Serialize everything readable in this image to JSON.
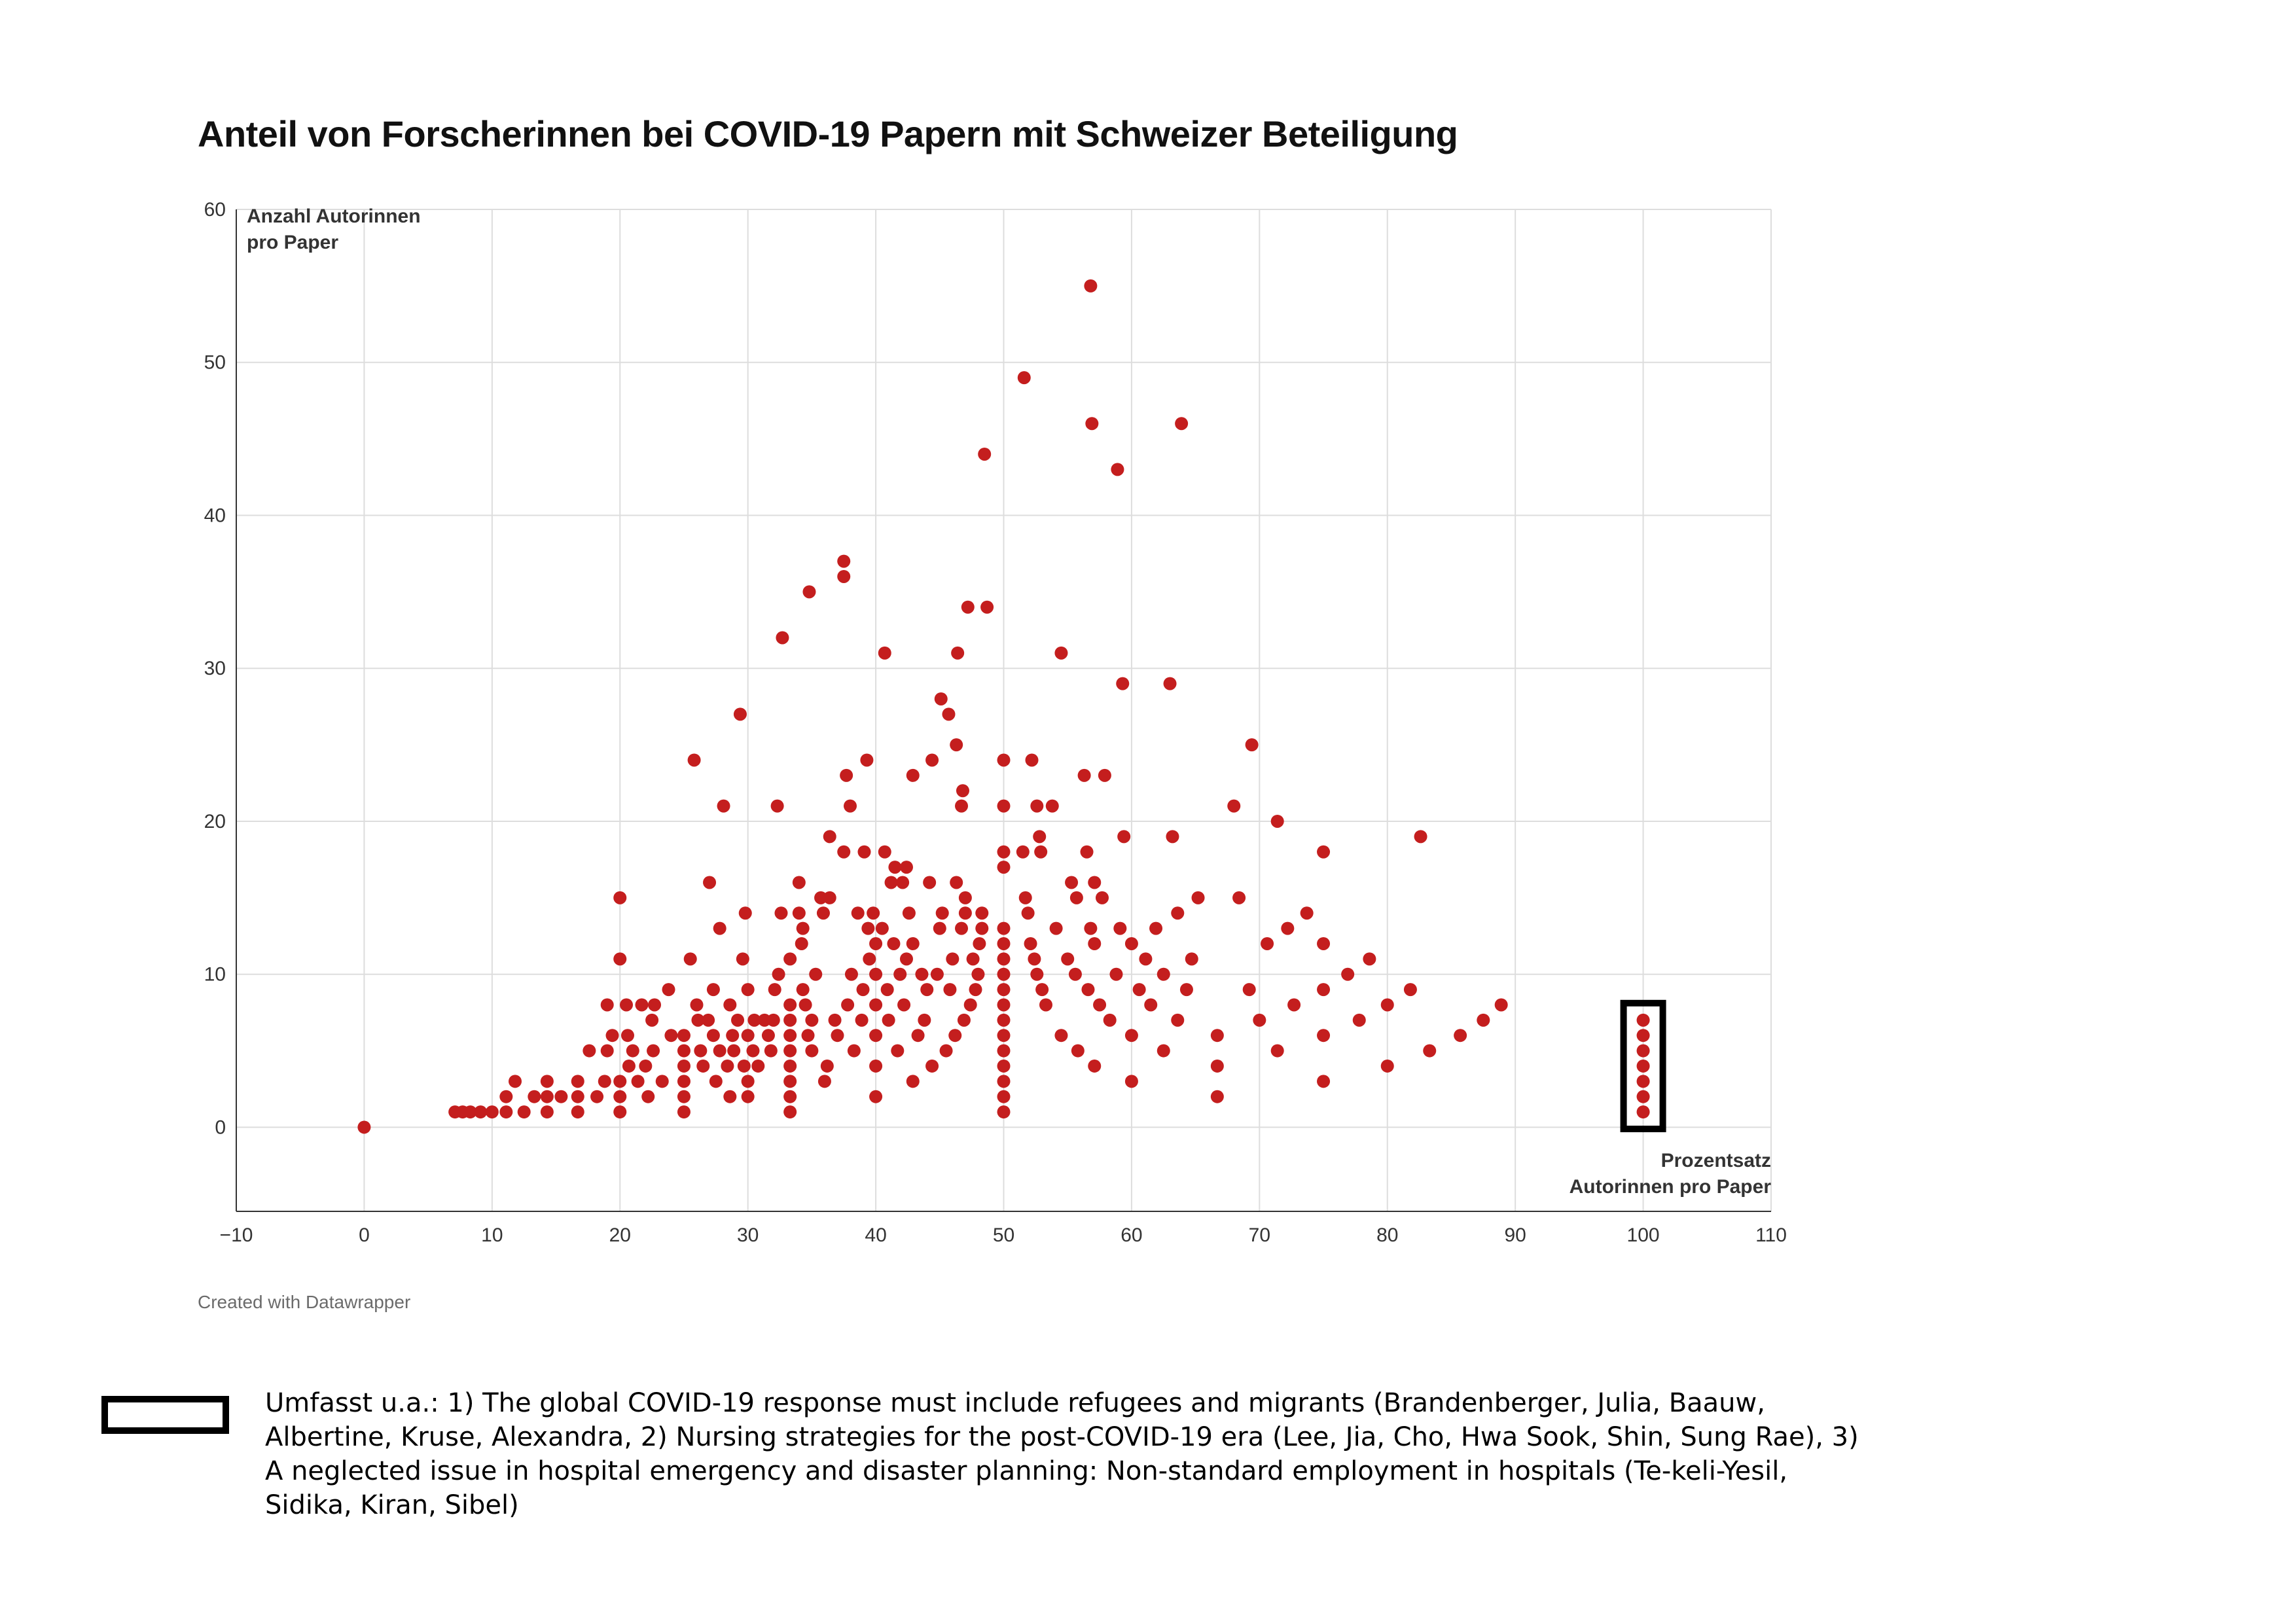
{
  "title": "Anteil von Forscherinnen bei COVID-19 Papern mit Schweizer Beteiligung",
  "credit": "Created with Datawrapper",
  "note": "Umfasst u.a.: 1) The global COVID-19 response must include refugees and migrants (Brandenberger, Julia, Baauw, Albertine, Kruse, Alexandra, 2) Nursing strategies for the post-COVID-19 era (Lee, Jia, Cho, Hwa Sook, Shin, Sung Rae), 3) A neglected issue in hospital emergency and disaster planning: Non-standard employment in hospitals (Te-keli-Yesil, Sidika, Kiran, Sibel)",
  "colors": {
    "dot": "#c41e1e",
    "grid": "#dddddd",
    "highlight": "#000000"
  },
  "chart_data": {
    "type": "scatter",
    "title": "Anteil von Forscherinnen bei COVID-19 Papern mit Schweizer Beteiligung",
    "ylabel_lines": [
      "Anzahl Autorinnen",
      "pro Paper"
    ],
    "xlabel_lines": [
      "Prozentsatz",
      "Autorinnen pro Paper"
    ],
    "xlim": [
      -10,
      110
    ],
    "ylim": [
      -5.5,
      60
    ],
    "x_ticks": [
      -10,
      0,
      10,
      20,
      30,
      40,
      50,
      60,
      70,
      80,
      90,
      100,
      110
    ],
    "x_tick_labels": [
      "−10",
      "0",
      "10",
      "20",
      "30",
      "40",
      "50",
      "60",
      "70",
      "80",
      "90",
      "100",
      "110"
    ],
    "y_ticks": [
      0,
      10,
      20,
      30,
      40,
      50,
      60
    ],
    "y_tick_labels": [
      "0",
      "10",
      "20",
      "30",
      "40",
      "50",
      "60"
    ],
    "grid": true,
    "highlight": {
      "x": 100,
      "y_range": [
        1,
        7
      ],
      "shape": "rectangle"
    },
    "points": [
      [
        0,
        0
      ],
      [
        7.1,
        1
      ],
      [
        7.7,
        1
      ],
      [
        8.3,
        1
      ],
      [
        9.1,
        1
      ],
      [
        10,
        1
      ],
      [
        11.1,
        1
      ],
      [
        11.1,
        2
      ],
      [
        11.8,
        3
      ],
      [
        12.5,
        1
      ],
      [
        13.3,
        2
      ],
      [
        14.3,
        1
      ],
      [
        14.3,
        2
      ],
      [
        14.3,
        3
      ],
      [
        15.4,
        2
      ],
      [
        16.7,
        1
      ],
      [
        16.7,
        2
      ],
      [
        16.7,
        3
      ],
      [
        17.6,
        5
      ],
      [
        18.2,
        2
      ],
      [
        18.8,
        3
      ],
      [
        19,
        5
      ],
      [
        19,
        8
      ],
      [
        19.4,
        6
      ],
      [
        20,
        1
      ],
      [
        20,
        2
      ],
      [
        20,
        3
      ],
      [
        20,
        11
      ],
      [
        20,
        15
      ],
      [
        20.5,
        8
      ],
      [
        20.6,
        6
      ],
      [
        20.7,
        4
      ],
      [
        21,
        5
      ],
      [
        21.4,
        3
      ],
      [
        21.7,
        8
      ],
      [
        22,
        4
      ],
      [
        22.2,
        2
      ],
      [
        22.5,
        7
      ],
      [
        22.6,
        5
      ],
      [
        22.7,
        8
      ],
      [
        23.3,
        3
      ],
      [
        23.8,
        9
      ],
      [
        24,
        6
      ],
      [
        25,
        1
      ],
      [
        25,
        2
      ],
      [
        25,
        3
      ],
      [
        25,
        4
      ],
      [
        25,
        5
      ],
      [
        25,
        6
      ],
      [
        25.5,
        11
      ],
      [
        25.8,
        24
      ],
      [
        26,
        8
      ],
      [
        26.1,
        7
      ],
      [
        26.3,
        5
      ],
      [
        26.5,
        4
      ],
      [
        26.9,
        7
      ],
      [
        27,
        16
      ],
      [
        27.3,
        6
      ],
      [
        27.3,
        9
      ],
      [
        27.5,
        3
      ],
      [
        27.8,
        5
      ],
      [
        27.8,
        13
      ],
      [
        28.1,
        21
      ],
      [
        28.4,
        4
      ],
      [
        28.6,
        2
      ],
      [
        28.6,
        8
      ],
      [
        28.8,
        6
      ],
      [
        28.9,
        5
      ],
      [
        29.2,
        7
      ],
      [
        29.4,
        27
      ],
      [
        29.6,
        11
      ],
      [
        29.7,
        4
      ],
      [
        29.8,
        14
      ],
      [
        30,
        3
      ],
      [
        30,
        6
      ],
      [
        30,
        9
      ],
      [
        30,
        2
      ],
      [
        30.4,
        5
      ],
      [
        30.5,
        7
      ],
      [
        30.8,
        4
      ],
      [
        31.3,
        7
      ],
      [
        31.6,
        6
      ],
      [
        31.8,
        5
      ],
      [
        32,
        7
      ],
      [
        32.1,
        9
      ],
      [
        32.3,
        21
      ],
      [
        32.4,
        10
      ],
      [
        32.6,
        14
      ],
      [
        32.7,
        32
      ],
      [
        33.3,
        1
      ],
      [
        33.3,
        2
      ],
      [
        33.3,
        3
      ],
      [
        33.3,
        4
      ],
      [
        33.3,
        5
      ],
      [
        33.3,
        6
      ],
      [
        33.3,
        7
      ],
      [
        33.3,
        8
      ],
      [
        33.3,
        11
      ],
      [
        34,
        14
      ],
      [
        34,
        16
      ],
      [
        34.2,
        12
      ],
      [
        34.3,
        13
      ],
      [
        34.3,
        9
      ],
      [
        34.5,
        8
      ],
      [
        34.7,
        6
      ],
      [
        34.8,
        35
      ],
      [
        35,
        5
      ],
      [
        35,
        7
      ],
      [
        35.3,
        10
      ],
      [
        35.7,
        15
      ],
      [
        35.9,
        14
      ],
      [
        36,
        3
      ],
      [
        36.2,
        4
      ],
      [
        36.4,
        19
      ],
      [
        36.4,
        15
      ],
      [
        36.8,
        7
      ],
      [
        37,
        6
      ],
      [
        37.5,
        18
      ],
      [
        37.5,
        36
      ],
      [
        37.5,
        37
      ],
      [
        37.7,
        23
      ],
      [
        37.8,
        8
      ],
      [
        38,
        21
      ],
      [
        38.1,
        10
      ],
      [
        38.3,
        5
      ],
      [
        38.6,
        14
      ],
      [
        38.9,
        7
      ],
      [
        39,
        9
      ],
      [
        39.1,
        18
      ],
      [
        39.3,
        24
      ],
      [
        39.4,
        13
      ],
      [
        39.5,
        11
      ],
      [
        39.8,
        14
      ],
      [
        40,
        2
      ],
      [
        40,
        4
      ],
      [
        40,
        6
      ],
      [
        40,
        8
      ],
      [
        40,
        10
      ],
      [
        40,
        12
      ],
      [
        40.5,
        13
      ],
      [
        40.7,
        31
      ],
      [
        40.7,
        18
      ],
      [
        40.9,
        9
      ],
      [
        41,
        7
      ],
      [
        41.2,
        16
      ],
      [
        41.4,
        12
      ],
      [
        41.5,
        17
      ],
      [
        41.7,
        5
      ],
      [
        41.9,
        10
      ],
      [
        42.1,
        16
      ],
      [
        42.2,
        8
      ],
      [
        42.4,
        11
      ],
      [
        42.4,
        17
      ],
      [
        42.6,
        14
      ],
      [
        42.9,
        12
      ],
      [
        42.9,
        23
      ],
      [
        42.9,
        3
      ],
      [
        43.3,
        6
      ],
      [
        43.6,
        10
      ],
      [
        43.8,
        7
      ],
      [
        44,
        9
      ],
      [
        44.2,
        16
      ],
      [
        44.4,
        24
      ],
      [
        44.4,
        4
      ],
      [
        44.8,
        10
      ],
      [
        45,
        13
      ],
      [
        45.1,
        28
      ],
      [
        45.2,
        14
      ],
      [
        45.5,
        5
      ],
      [
        45.7,
        27
      ],
      [
        45.8,
        9
      ],
      [
        46,
        11
      ],
      [
        46.2,
        6
      ],
      [
        46.3,
        16
      ],
      [
        46.3,
        25
      ],
      [
        46.4,
        31
      ],
      [
        46.7,
        13
      ],
      [
        46.7,
        21
      ],
      [
        46.8,
        22
      ],
      [
        46.9,
        7
      ],
      [
        47,
        14
      ],
      [
        47,
        15
      ],
      [
        47.2,
        34
      ],
      [
        47.4,
        8
      ],
      [
        47.6,
        11
      ],
      [
        47.8,
        9
      ],
      [
        48,
        10
      ],
      [
        48.1,
        12
      ],
      [
        48.3,
        13
      ],
      [
        48.3,
        14
      ],
      [
        48.5,
        44
      ],
      [
        48.7,
        34
      ],
      [
        50,
        1
      ],
      [
        50,
        2
      ],
      [
        50,
        3
      ],
      [
        50,
        4
      ],
      [
        50,
        5
      ],
      [
        50,
        6
      ],
      [
        50,
        7
      ],
      [
        50,
        8
      ],
      [
        50,
        9
      ],
      [
        50,
        10
      ],
      [
        50,
        11
      ],
      [
        50,
        12
      ],
      [
        50,
        13
      ],
      [
        50,
        17
      ],
      [
        50,
        18
      ],
      [
        50,
        21
      ],
      [
        50,
        24
      ],
      [
        51.5,
        18
      ],
      [
        51.6,
        49
      ],
      [
        51.7,
        15
      ],
      [
        51.9,
        14
      ],
      [
        52.1,
        12
      ],
      [
        52.2,
        24
      ],
      [
        52.4,
        11
      ],
      [
        52.6,
        21
      ],
      [
        52.6,
        10
      ],
      [
        52.8,
        19
      ],
      [
        52.9,
        18
      ],
      [
        53,
        9
      ],
      [
        53.3,
        8
      ],
      [
        53.8,
        21
      ],
      [
        54.1,
        13
      ],
      [
        54.5,
        31
      ],
      [
        54.5,
        6
      ],
      [
        55,
        11
      ],
      [
        55.3,
        16
      ],
      [
        55.6,
        10
      ],
      [
        55.7,
        15
      ],
      [
        55.8,
        5
      ],
      [
        56.3,
        23
      ],
      [
        56.5,
        18
      ],
      [
        56.6,
        9
      ],
      [
        56.8,
        55
      ],
      [
        56.8,
        13
      ],
      [
        56.9,
        46
      ],
      [
        57.1,
        4
      ],
      [
        57.1,
        12
      ],
      [
        57.1,
        16
      ],
      [
        57.5,
        8
      ],
      [
        57.7,
        15
      ],
      [
        57.9,
        23
      ],
      [
        58.3,
        7
      ],
      [
        58.8,
        10
      ],
      [
        58.9,
        43
      ],
      [
        59.1,
        13
      ],
      [
        59.3,
        29
      ],
      [
        59.4,
        19
      ],
      [
        60,
        3
      ],
      [
        60,
        6
      ],
      [
        60,
        12
      ],
      [
        60.6,
        9
      ],
      [
        61.1,
        11
      ],
      [
        61.5,
        8
      ],
      [
        61.9,
        13
      ],
      [
        62.5,
        5
      ],
      [
        62.5,
        10
      ],
      [
        63,
        29
      ],
      [
        63.2,
        19
      ],
      [
        63.6,
        7
      ],
      [
        63.6,
        14
      ],
      [
        63.9,
        46
      ],
      [
        64.3,
        9
      ],
      [
        64.7,
        11
      ],
      [
        65.2,
        15
      ],
      [
        66.7,
        2
      ],
      [
        66.7,
        4
      ],
      [
        66.7,
        6
      ],
      [
        68,
        21
      ],
      [
        68.4,
        15
      ],
      [
        69.2,
        9
      ],
      [
        69.4,
        25
      ],
      [
        70,
        7
      ],
      [
        70.6,
        12
      ],
      [
        71.4,
        5
      ],
      [
        71.4,
        20
      ],
      [
        72.2,
        13
      ],
      [
        72.7,
        8
      ],
      [
        73.7,
        14
      ],
      [
        75,
        3
      ],
      [
        75,
        6
      ],
      [
        75,
        9
      ],
      [
        75,
        12
      ],
      [
        75,
        18
      ],
      [
        76.9,
        10
      ],
      [
        77.8,
        7
      ],
      [
        78.6,
        11
      ],
      [
        80,
        4
      ],
      [
        80,
        8
      ],
      [
        81.8,
        9
      ],
      [
        82.6,
        19
      ],
      [
        83.3,
        5
      ],
      [
        85.7,
        6
      ],
      [
        87.5,
        7
      ],
      [
        88.9,
        8
      ],
      [
        100,
        1
      ],
      [
        100,
        2
      ],
      [
        100,
        3
      ],
      [
        100,
        4
      ],
      [
        100,
        5
      ],
      [
        100,
        6
      ],
      [
        100,
        7
      ]
    ]
  }
}
